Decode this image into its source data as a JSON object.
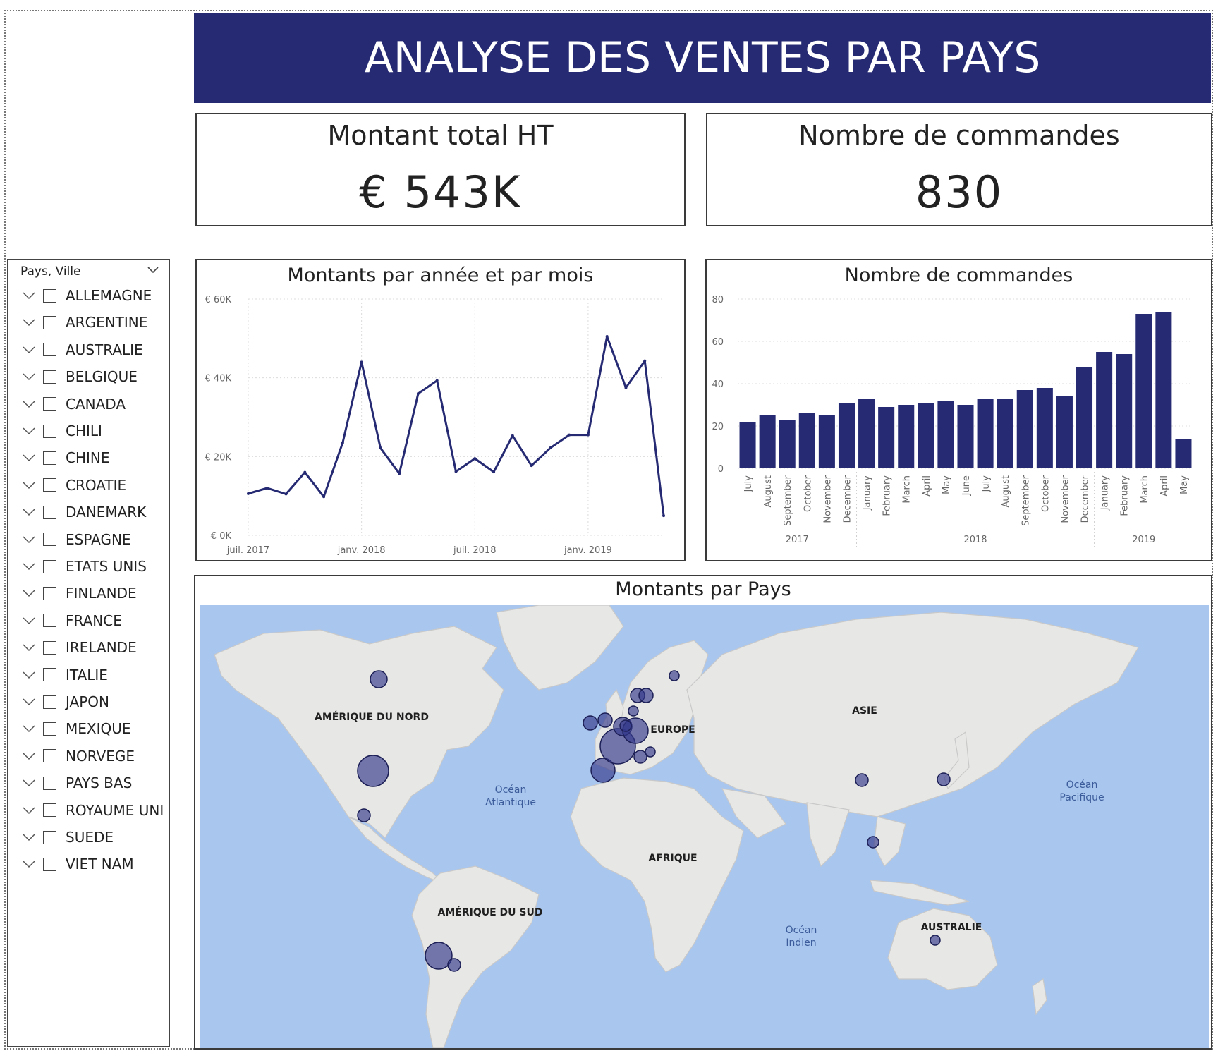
{
  "title": "ANALYSE DES VENTES PAR PAYS",
  "kpis": {
    "amount": {
      "label": "Montant total HT",
      "value": "€ 543K"
    },
    "orders": {
      "label": "Nombre de commandes",
      "value": "830"
    }
  },
  "slicer": {
    "header": "Pays, Ville",
    "items": [
      "ALLEMAGNE",
      "ARGENTINE",
      "AUSTRALIE",
      "BELGIQUE",
      "CANADA",
      "CHILI",
      "CHINE",
      "CROATIE",
      "DANEMARK",
      "ESPAGNE",
      "ETATS UNIS",
      "FINLANDE",
      "FRANCE",
      "IRELANDE",
      "ITALIE",
      "JAPON",
      "MEXIQUE",
      "NORVEGE",
      "PAYS BAS",
      "ROYAUME UNI",
      "SUEDE",
      "VIET NAM"
    ]
  },
  "line_chart": {
    "title": "Montants par année et par mois",
    "y_tick_labels": [
      "€ 0K",
      "€ 20K",
      "€ 40K",
      "€ 60K"
    ],
    "x_tick_labels": [
      "juil. 2017",
      "janv. 2018",
      "juil. 2018",
      "janv. 2019"
    ]
  },
  "bar_chart": {
    "title": "Nombre de commandes",
    "y_tick_labels": [
      "0",
      "20",
      "40",
      "60",
      "80"
    ],
    "month_labels": [
      "July",
      "August",
      "September",
      "October",
      "November",
      "December",
      "January",
      "February",
      "March",
      "April",
      "May",
      "June",
      "July",
      "August",
      "September",
      "October",
      "November",
      "December",
      "January",
      "February",
      "March",
      "April",
      "May"
    ],
    "year_labels": [
      "2017",
      "2018",
      "2019"
    ]
  },
  "map": {
    "title": "Montants par Pays",
    "continent_labels": [
      "AMÉRIQUE DU NORD",
      "EUROPE",
      "ASIE",
      "AFRIQUE",
      "AMÉRIQUE DU SUD",
      "AUSTRALIE"
    ],
    "ocean_labels": [
      [
        "Océan",
        "Atlantique"
      ],
      [
        "Océan",
        "Pacifique"
      ],
      [
        "Océan",
        "Indien"
      ]
    ],
    "bubble_color": "#33378a"
  },
  "colors": {
    "accent": "#252a72",
    "line": "#252a72",
    "bar": "#252a72",
    "map_water": "#a9c6ee",
    "map_land": "#e7e7e5"
  },
  "chart_data": [
    {
      "type": "line",
      "title": "Montants par année et par mois",
      "x": [
        "2017-07",
        "2017-08",
        "2017-09",
        "2017-10",
        "2017-11",
        "2017-12",
        "2018-01",
        "2018-02",
        "2018-03",
        "2018-04",
        "2018-05",
        "2018-06",
        "2018-07",
        "2018-08",
        "2018-09",
        "2018-10",
        "2018-11",
        "2018-12",
        "2019-01",
        "2019-02",
        "2019-03",
        "2019-04",
        "2019-05"
      ],
      "values": [
        10600,
        12000,
        10500,
        16000,
        9800,
        23500,
        44000,
        22200,
        15700,
        36000,
        39300,
        16200,
        19500,
        16100,
        25300,
        17700,
        22200,
        25500,
        25500,
        50500,
        37500,
        44300,
        5000
      ],
      "ylim": [
        0,
        60000
      ],
      "grid": true
    },
    {
      "type": "bar",
      "title": "Nombre de commandes",
      "categories": [
        "July 2017",
        "August 2017",
        "September 2017",
        "October 2017",
        "November 2017",
        "December 2017",
        "January 2018",
        "February 2018",
        "March 2018",
        "April 2018",
        "May 2018",
        "June 2018",
        "July 2018",
        "August 2018",
        "September 2018",
        "October 2018",
        "November 2018",
        "December 2018",
        "January 2019",
        "February 2019",
        "March 2019",
        "April 2019",
        "May 2019"
      ],
      "values": [
        22,
        25,
        23,
        26,
        25,
        31,
        33,
        29,
        30,
        31,
        32,
        30,
        33,
        33,
        37,
        38,
        34,
        48,
        55,
        54,
        73,
        74,
        14
      ],
      "ylim": [
        0,
        80
      ],
      "grid": true
    }
  ]
}
